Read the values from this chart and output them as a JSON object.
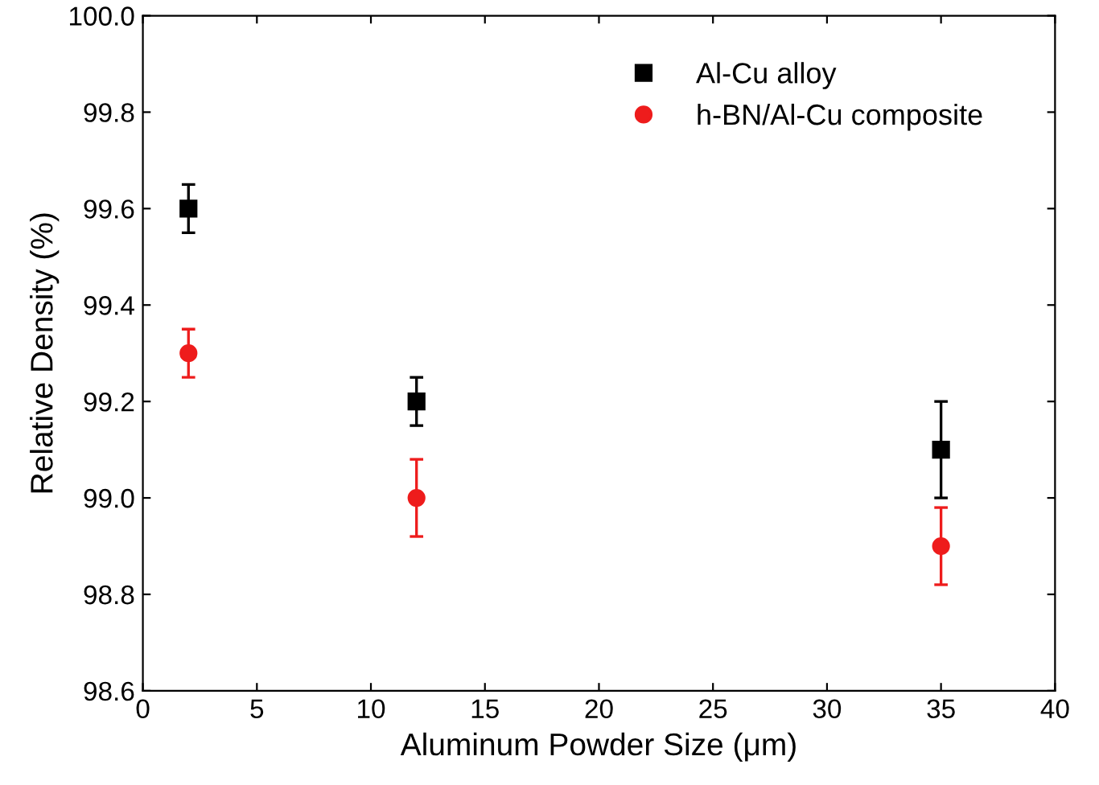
{
  "chart_data": {
    "type": "scatter",
    "xlabel": "Aluminum Powder Size (μm)",
    "ylabel": "Relative Density (%)",
    "x": [
      2,
      12,
      35
    ],
    "series": [
      {
        "name": "Al-Cu alloy",
        "color": "#000000",
        "marker": "square",
        "values": [
          99.6,
          99.2,
          99.1
        ],
        "errors": [
          0.05,
          0.05,
          0.1
        ]
      },
      {
        "name": "h-BN/Al-Cu composite",
        "color": "#ee1c1c",
        "marker": "circle",
        "values": [
          99.3,
          99.0,
          98.9
        ],
        "errors": [
          0.05,
          0.08,
          0.08
        ]
      }
    ],
    "xlim": [
      0,
      40
    ],
    "xticks": [
      0,
      5,
      10,
      15,
      20,
      25,
      30,
      35,
      40
    ],
    "ylim": [
      98.6,
      100.0
    ],
    "yticks": [
      98.6,
      98.8,
      {
        "value": 99.0,
        "label": "99.0"
      },
      99.2,
      99.4,
      99.6,
      99.8,
      {
        "value": 100.0,
        "label": "100.0"
      }
    ],
    "grid": false,
    "legend": "top right"
  }
}
